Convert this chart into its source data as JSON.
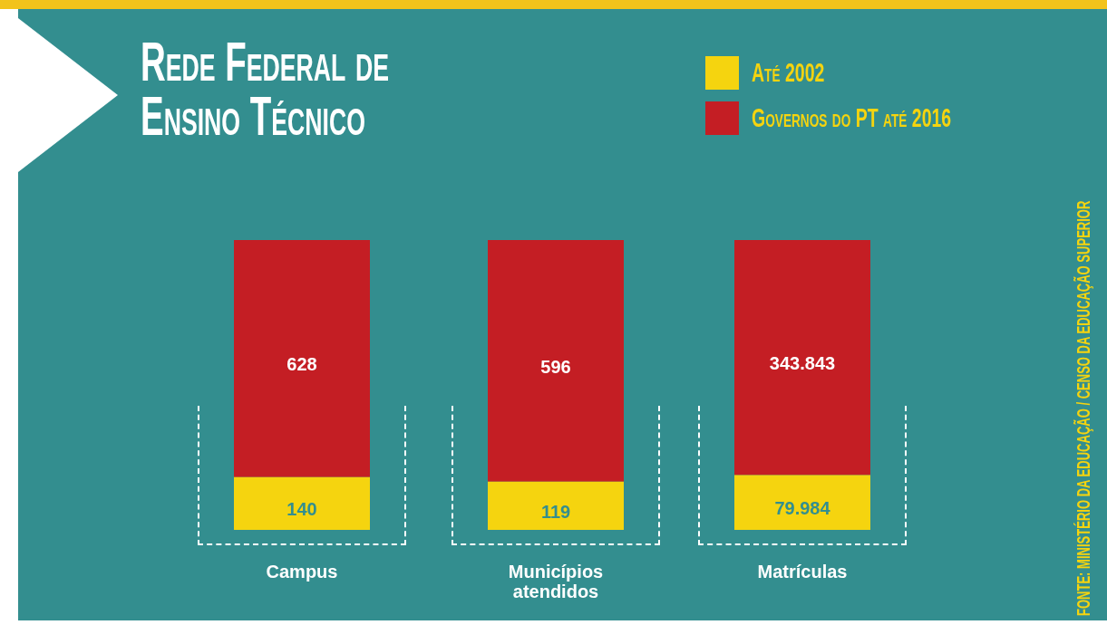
{
  "chart_data": [
    {
      "type": "bar",
      "title": "Rede Federal de Ensino Técnico",
      "legend": "top right",
      "stacked": true,
      "tick_labels": false,
      "categories": [
        "Campus"
      ],
      "ylim": [
        0,
        768
      ],
      "series": [
        {
          "name": "Até 2002",
          "color": "#f5d40f",
          "values": [
            140
          ],
          "value_labels": [
            "140"
          ]
        },
        {
          "name": "Governos do PT até 2016",
          "color": "#c41e24",
          "values": [
            628
          ],
          "value_labels": [
            "628"
          ]
        }
      ],
      "annotations": [
        "FONTE: MINISTÉRIO DA EDUCAÇÃO / CENSO DA EDUCAÇÃO SUPERIOR"
      ]
    },
    {
      "type": "bar",
      "stacked": true,
      "tick_labels": false,
      "categories": [
        "Municípios atendidos"
      ],
      "ylim": [
        0,
        715
      ],
      "series": [
        {
          "color": "#f5d40f",
          "values": [
            119
          ],
          "value_labels": [
            "119"
          ]
        },
        {
          "color": "#c41e24",
          "values": [
            596
          ],
          "value_labels": [
            "596"
          ]
        }
      ]
    },
    {
      "type": "bar",
      "stacked": true,
      "tick_labels": false,
      "categories": [
        "Matrículas"
      ],
      "ylim": [
        0,
        423827
      ],
      "series": [
        {
          "color": "#f5d40f",
          "values": [
            79984
          ],
          "value_labels": [
            "79.984"
          ]
        },
        {
          "color": "#c41e24",
          "values": [
            343843
          ],
          "value_labels": [
            "343.843"
          ]
        }
      ]
    }
  ]
}
